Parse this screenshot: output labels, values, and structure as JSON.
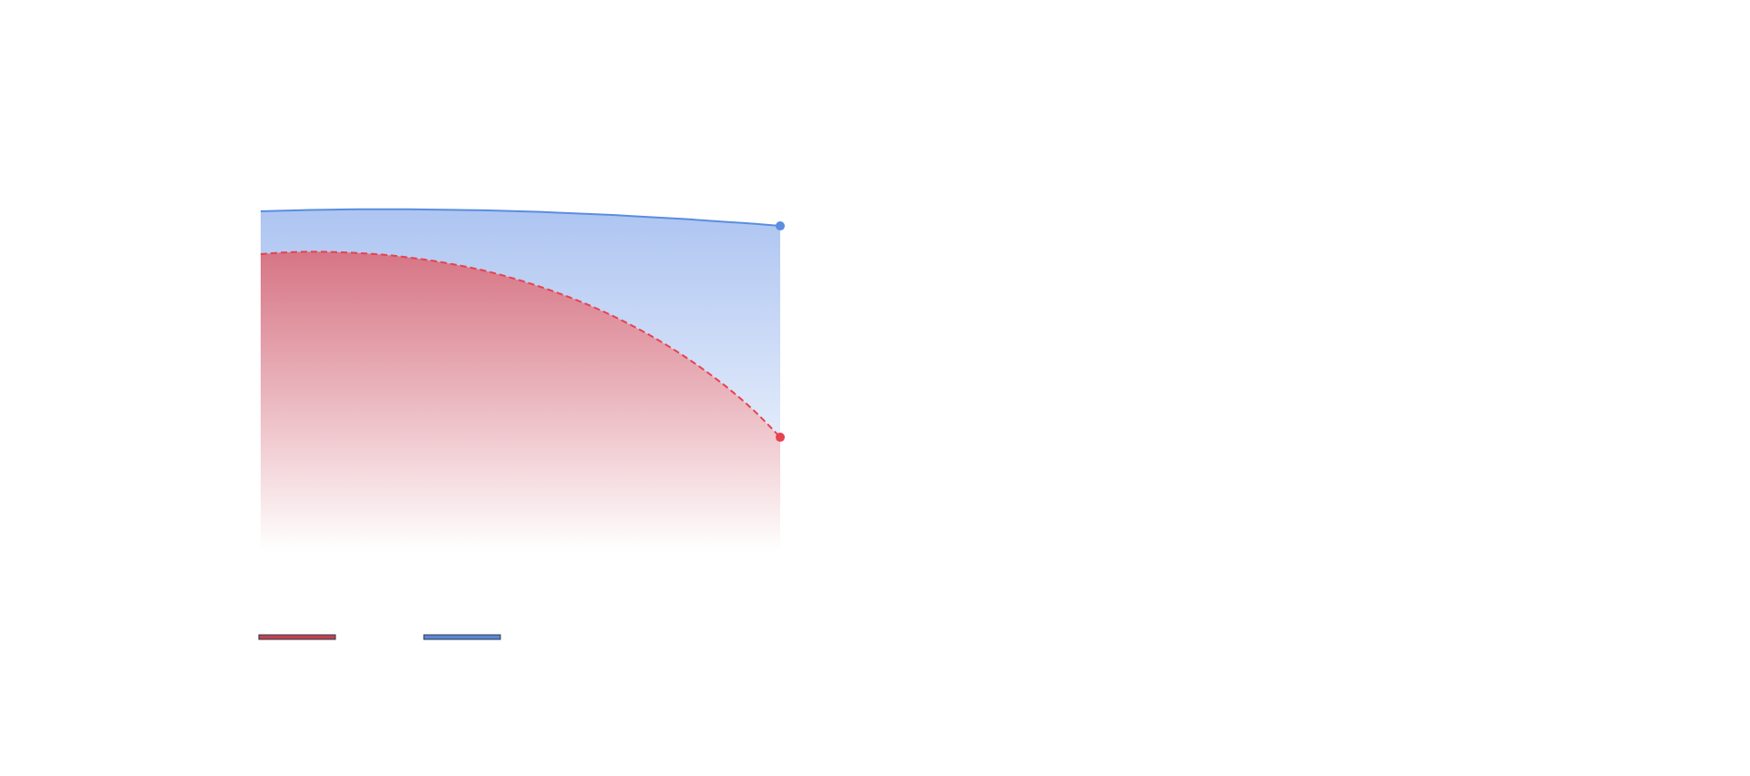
{
  "colors": {
    "background": "#ffffff",
    "red_line": "#e8414f",
    "red_fill_top": "#d8707f",
    "blue_line": "#5b8de0",
    "blue_fill_top": "#a9c2f1",
    "legend_red": "#c0434e",
    "legend_blue": "#5b87d6",
    "legend_border": "#2e3a4d"
  },
  "chart_data": {
    "type": "area",
    "x": [
      0,
      1,
      2,
      3,
      4,
      5,
      6,
      7,
      8,
      9,
      10,
      11,
      12,
      13,
      14,
      15,
      16,
      17,
      18,
      19,
      20,
      21
    ],
    "xlim": [
      0,
      21
    ],
    "ylim": [
      0,
      100
    ],
    "grid": false,
    "legend_position": "bottom-left",
    "series": [
      {
        "key": "blue",
        "line_style": "solid",
        "end_marker": true,
        "values": [
          100,
          100.2,
          100.4,
          100.5,
          100.6,
          100.6,
          100.6,
          100.5,
          100.4,
          100.3,
          100.1,
          99.9,
          99.6,
          99.3,
          99.0,
          98.6,
          98.2,
          97.8,
          97.3,
          96.8,
          96.3,
          95.7
        ]
      },
      {
        "key": "red",
        "line_style": "dashed",
        "end_marker": true,
        "values": [
          87.4,
          87.9,
          88.1,
          88.0,
          87.7,
          87.2,
          86.4,
          85.4,
          84.1,
          82.6,
          80.7,
          78.5,
          76.0,
          73.2,
          70.0,
          66.4,
          62.4,
          57.9,
          52.9,
          47.3,
          40.9,
          33.5
        ]
      }
    ],
    "legend": [
      {
        "series_key": "red"
      },
      {
        "series_key": "blue"
      }
    ]
  }
}
